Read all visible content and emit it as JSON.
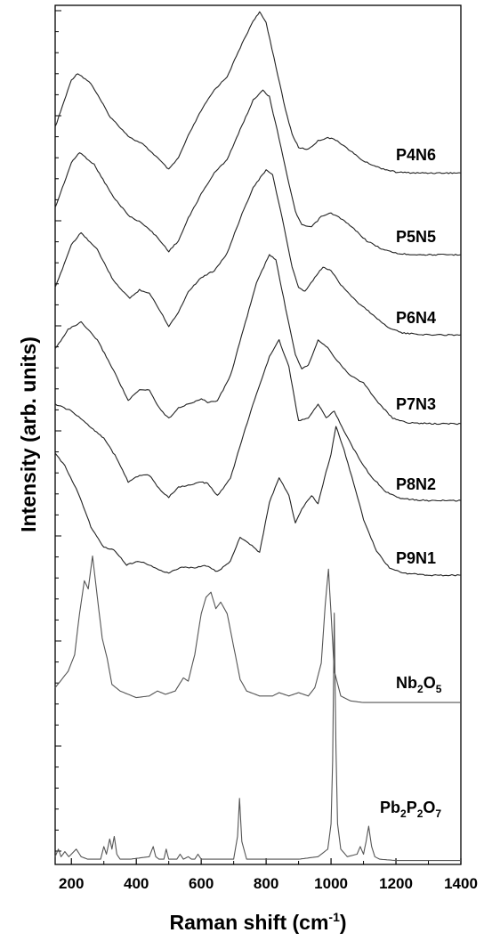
{
  "chart_data": {
    "type": "line",
    "xlabel": "Raman shift (cm-1)",
    "xlabel_parts": {
      "main": "Raman shift (cm",
      "sup": "-1",
      "close": ")"
    },
    "ylabel": "Intensity (arb. units)",
    "xlim": [
      150,
      1400
    ],
    "xticks": [
      200,
      400,
      600,
      800,
      1000,
      1200,
      1400
    ],
    "yticks_labeled": false,
    "grid": false,
    "legend": "inline labels at right of each trace",
    "series": [
      {
        "name": "P4N6",
        "label_parts": [
          {
            "t": "P4N6"
          }
        ],
        "color": "#222222",
        "x": [
          150,
          200,
          220,
          260,
          320,
          380,
          420,
          460,
          500,
          530,
          560,
          600,
          640,
          680,
          720,
          760,
          780,
          800,
          830,
          860,
          880,
          900,
          930,
          960,
          990,
          1020,
          1060,
          1100,
          1150,
          1200,
          1260,
          1330,
          1400
        ],
        "y": [
          0.3,
          0.58,
          0.62,
          0.56,
          0.36,
          0.24,
          0.2,
          0.13,
          0.05,
          0.12,
          0.25,
          0.4,
          0.52,
          0.6,
          0.77,
          0.93,
          0.98,
          0.92,
          0.66,
          0.4,
          0.26,
          0.18,
          0.17,
          0.22,
          0.24,
          0.22,
          0.16,
          0.1,
          0.06,
          0.035,
          0.03,
          0.03,
          0.03
        ]
      },
      {
        "name": "P5N5",
        "label_parts": [
          {
            "t": "P5N5"
          }
        ],
        "color": "#222222",
        "x": [
          150,
          200,
          225,
          270,
          330,
          380,
          420,
          460,
          500,
          530,
          560,
          600,
          640,
          680,
          720,
          760,
          790,
          810,
          840,
          870,
          890,
          910,
          940,
          970,
          1000,
          1030,
          1070,
          1110,
          1160,
          1210,
          1280,
          1400
        ],
        "y": [
          0.3,
          0.56,
          0.62,
          0.55,
          0.36,
          0.25,
          0.21,
          0.14,
          0.05,
          0.11,
          0.24,
          0.38,
          0.5,
          0.58,
          0.75,
          0.92,
          0.98,
          0.94,
          0.7,
          0.44,
          0.28,
          0.2,
          0.19,
          0.25,
          0.27,
          0.24,
          0.18,
          0.11,
          0.06,
          0.035,
          0.03,
          0.03
        ]
      },
      {
        "name": "P6N4",
        "label_parts": [
          {
            "t": "P6N4"
          }
        ],
        "color": "#222222",
        "x": [
          150,
          200,
          230,
          280,
          330,
          380,
          410,
          440,
          470,
          500,
          530,
          560,
          600,
          640,
          680,
          720,
          760,
          800,
          820,
          850,
          880,
          900,
          920,
          950,
          975,
          1000,
          1030,
          1080,
          1120,
          1170,
          1220,
          1300,
          1400
        ],
        "y": [
          0.3,
          0.55,
          0.62,
          0.52,
          0.34,
          0.24,
          0.29,
          0.27,
          0.18,
          0.08,
          0.16,
          0.28,
          0.36,
          0.4,
          0.5,
          0.7,
          0.88,
          0.98,
          0.95,
          0.7,
          0.42,
          0.3,
          0.28,
          0.36,
          0.42,
          0.4,
          0.32,
          0.22,
          0.16,
          0.08,
          0.04,
          0.03,
          0.03
        ]
      },
      {
        "name": "P7N3",
        "label_parts": [
          {
            "t": "P7N3"
          }
        ],
        "color": "#222222",
        "x": [
          150,
          190,
          230,
          280,
          330,
          375,
          410,
          440,
          470,
          500,
          530,
          560,
          600,
          620,
          650,
          690,
          730,
          770,
          810,
          830,
          860,
          890,
          910,
          930,
          960,
          990,
          1020,
          1060,
          1100,
          1140,
          1190,
          1240,
          1320,
          1400
        ],
        "y": [
          0.45,
          0.56,
          0.6,
          0.5,
          0.33,
          0.16,
          0.22,
          0.22,
          0.12,
          0.06,
          0.12,
          0.14,
          0.17,
          0.15,
          0.16,
          0.3,
          0.56,
          0.82,
          0.98,
          0.95,
          0.68,
          0.42,
          0.34,
          0.36,
          0.5,
          0.46,
          0.38,
          0.3,
          0.26,
          0.16,
          0.06,
          0.035,
          0.03,
          0.03
        ]
      },
      {
        "name": "P8N2",
        "label_parts": [
          {
            "t": "P8N2"
          }
        ],
        "color": "#222222",
        "x": [
          150,
          200,
          250,
          300,
          340,
          375,
          410,
          440,
          470,
          500,
          530,
          560,
          600,
          620,
          650,
          690,
          730,
          770,
          810,
          840,
          870,
          900,
          930,
          960,
          985,
          1010,
          1040,
          1080,
          1120,
          1170,
          1220,
          1300,
          1400
        ],
        "y": [
          0.6,
          0.56,
          0.48,
          0.4,
          0.28,
          0.14,
          0.18,
          0.18,
          0.1,
          0.05,
          0.11,
          0.12,
          0.14,
          0.13,
          0.06,
          0.16,
          0.42,
          0.66,
          0.88,
          0.98,
          0.82,
          0.5,
          0.52,
          0.6,
          0.52,
          0.56,
          0.44,
          0.3,
          0.18,
          0.08,
          0.04,
          0.03,
          0.03
        ]
      },
      {
        "name": "P9N1",
        "label_parts": [
          {
            "t": "P9N1"
          }
        ],
        "color": "#222222",
        "x": [
          150,
          180,
          220,
          260,
          300,
          330,
          370,
          410,
          440,
          470,
          500,
          540,
          580,
          610,
          650,
          690,
          720,
          750,
          780,
          810,
          840,
          870,
          890,
          910,
          940,
          960,
          980,
          1000,
          1015,
          1040,
          1070,
          1100,
          1140,
          1180,
          1230,
          1300,
          1400
        ],
        "y": [
          0.72,
          0.65,
          0.5,
          0.3,
          0.18,
          0.17,
          0.08,
          0.1,
          0.08,
          0.05,
          0.03,
          0.07,
          0.06,
          0.08,
          0.04,
          0.1,
          0.24,
          0.2,
          0.15,
          0.44,
          0.58,
          0.48,
          0.32,
          0.4,
          0.48,
          0.43,
          0.58,
          0.72,
          0.88,
          0.74,
          0.55,
          0.34,
          0.16,
          0.06,
          0.03,
          0.02,
          0.02
        ]
      },
      {
        "name": "Nb2O5",
        "label_parts": [
          {
            "t": "Nb"
          },
          {
            "t": "2",
            "sub": true
          },
          {
            "t": "O"
          },
          {
            "t": "5",
            "sub": true
          }
        ],
        "color": "#555555",
        "x": [
          150,
          170,
          190,
          210,
          225,
          240,
          252,
          265,
          280,
          295,
          310,
          325,
          350,
          400,
          440,
          465,
          490,
          520,
          545,
          560,
          580,
          600,
          615,
          630,
          645,
          660,
          680,
          700,
          720,
          740,
          780,
          820,
          840,
          870,
          900,
          930,
          950,
          970,
          982,
          992,
          1000,
          1010,
          1030,
          1060,
          1100,
          1200,
          1300,
          1400
        ],
        "y": [
          0.1,
          0.15,
          0.2,
          0.3,
          0.55,
          0.75,
          0.7,
          0.9,
          0.65,
          0.4,
          0.28,
          0.12,
          0.08,
          0.04,
          0.05,
          0.08,
          0.06,
          0.08,
          0.16,
          0.14,
          0.3,
          0.55,
          0.65,
          0.68,
          0.58,
          0.62,
          0.55,
          0.35,
          0.15,
          0.08,
          0.05,
          0.05,
          0.07,
          0.05,
          0.07,
          0.05,
          0.1,
          0.25,
          0.6,
          0.82,
          0.55,
          0.2,
          0.05,
          0.02,
          0.01,
          0.01,
          0.01,
          0.01
        ]
      },
      {
        "name": "Pb2P2O7",
        "label_parts": [
          {
            "t": "Pb"
          },
          {
            "t": "2",
            "sub": true
          },
          {
            "t": "P"
          },
          {
            "t": "2",
            "sub": true
          },
          {
            "t": "O"
          },
          {
            "t": "7",
            "sub": true
          }
        ],
        "color": "#555555",
        "x": [
          150,
          160,
          168,
          180,
          192,
          200,
          215,
          230,
          250,
          290,
          300,
          308,
          318,
          325,
          332,
          340,
          350,
          380,
          440,
          452,
          460,
          470,
          485,
          492,
          500,
          525,
          535,
          545,
          560,
          570,
          580,
          590,
          600,
          650,
          700,
          712,
          718,
          725,
          740,
          800,
          900,
          960,
          990,
          1000,
          1005,
          1010,
          1015,
          1020,
          1030,
          1050,
          1080,
          1090,
          1100,
          1108,
          1116,
          1125,
          1135,
          1150,
          1200,
          1300,
          1400
        ],
        "y": [
          0.02,
          0.05,
          0.02,
          0.04,
          0.02,
          0.03,
          0.05,
          0.02,
          0.01,
          0.01,
          0.06,
          0.03,
          0.09,
          0.05,
          0.1,
          0.03,
          0.01,
          0.01,
          0.02,
          0.06,
          0.02,
          0.01,
          0.01,
          0.05,
          0.01,
          0.01,
          0.03,
          0.01,
          0.02,
          0.01,
          0.01,
          0.03,
          0.01,
          0.01,
          0.01,
          0.1,
          0.25,
          0.08,
          0.01,
          0.01,
          0.01,
          0.02,
          0.05,
          0.15,
          0.4,
          0.98,
          0.45,
          0.15,
          0.05,
          0.02,
          0.03,
          0.06,
          0.03,
          0.08,
          0.14,
          0.06,
          0.02,
          0.01,
          0.005,
          0.005,
          0.005
        ]
      }
    ]
  }
}
